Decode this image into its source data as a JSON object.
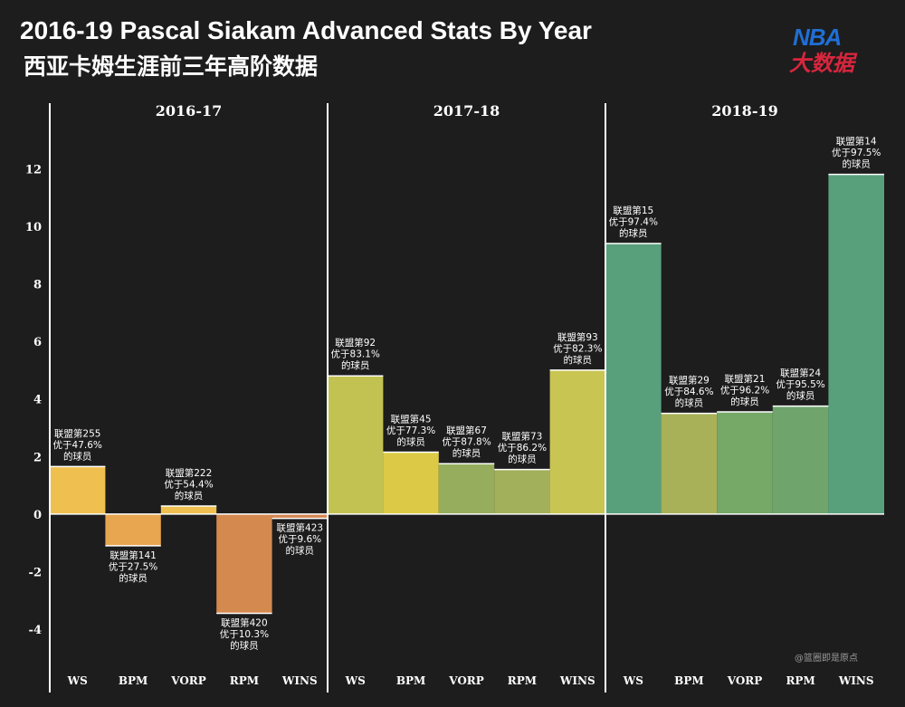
{
  "title_en": "2016-19 Pascal Siakam Advanced Stats By Year",
  "title_cn": "西亚卡姆生涯前三年高阶数据",
  "logo": {
    "top": "NBA",
    "bottom": "大数据"
  },
  "watermark": "@篮圈即是原点",
  "colors": {
    "background": "#1d1d1d",
    "axis": "#ffffff"
  },
  "chart_data": {
    "type": "bar",
    "ylim": [
      -6.2,
      14.4
    ],
    "yticks": [
      -4,
      -2,
      0,
      2,
      4,
      6,
      8,
      10,
      12
    ],
    "categories": [
      "WS",
      "BPM",
      "VORP",
      "RPM",
      "WINS"
    ],
    "panels": [
      {
        "name": "2016-17",
        "values": [
          1.65,
          -1.1,
          0.28,
          -3.45,
          -0.15
        ],
        "colors": [
          "#efc050",
          "#e8a650",
          "#efc050",
          "#d4894f",
          "#d48550"
        ],
        "labels": [
          [
            "联盟第255",
            "优于47.6%",
            "的球员"
          ],
          [
            "联盟第141",
            "优于27.5%",
            "的球员"
          ],
          [
            "联盟第222",
            "优于54.4%",
            "的球员"
          ],
          [
            "联盟第420",
            "优于10.3%",
            "的球员"
          ],
          [
            "联盟第423",
            "优于9.6%",
            "的球员"
          ]
        ]
      },
      {
        "name": "2017-18",
        "values": [
          4.8,
          2.15,
          1.75,
          1.55,
          5.0
        ],
        "colors": [
          "#c2c253",
          "#dcca46",
          "#97ad5e",
          "#a3b05b",
          "#c9c552"
        ],
        "labels": [
          [
            "联盟第92",
            "优于83.1%",
            "的球员"
          ],
          [
            "联盟第45",
            "优于77.3%",
            "的球员"
          ],
          [
            "联盟第67",
            "优于87.8%",
            "的球员"
          ],
          [
            "联盟第73",
            "优于86.2%",
            "的球员"
          ],
          [
            "联盟第93",
            "优于82.3%",
            "的球员"
          ]
        ]
      },
      {
        "name": "2018-19",
        "values": [
          9.4,
          3.5,
          3.55,
          3.75,
          11.8
        ],
        "colors": [
          "#58a07c",
          "#a9b158",
          "#76a868",
          "#6fa46c",
          "#58a07c"
        ],
        "labels": [
          [
            "联盟第15",
            "优于97.4%",
            "的球员"
          ],
          [
            "联盟第29",
            "优于84.6%",
            "的球员"
          ],
          [
            "联盟第21",
            "优于96.2%",
            "的球员"
          ],
          [
            "联盟第24",
            "优于95.5%",
            "的球员"
          ],
          [
            "联盟第14",
            "优于97.5%",
            "的球员"
          ]
        ]
      }
    ]
  }
}
